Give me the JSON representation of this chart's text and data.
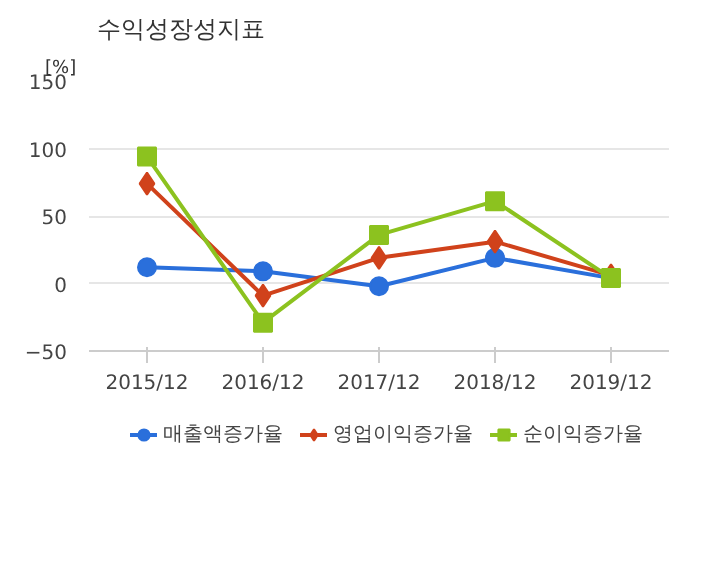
{
  "chart_data": {
    "type": "line",
    "title": "수익성장성지표",
    "ylabel": "[%]",
    "categories": [
      "2015/12",
      "2016/12",
      "2017/12",
      "2018/12",
      "2019/12"
    ],
    "series": [
      {
        "name": "매출액증가율",
        "color": "#2a6fdb",
        "marker": "circle",
        "values": [
          12,
          9,
          -2,
          19,
          4
        ]
      },
      {
        "name": "영업이익증가율",
        "color": "#d0421b",
        "marker": "diamond",
        "values": [
          74,
          -9,
          19,
          31,
          6
        ]
      },
      {
        "name": "순이익증가율",
        "color": "#8cc21f",
        "marker": "square",
        "values": [
          94,
          -29,
          36,
          61,
          4
        ]
      }
    ],
    "ylim": [
      -50,
      150
    ],
    "yticks": [
      -50,
      0,
      50,
      100,
      150
    ],
    "grid": "y",
    "legend": "bottom"
  }
}
